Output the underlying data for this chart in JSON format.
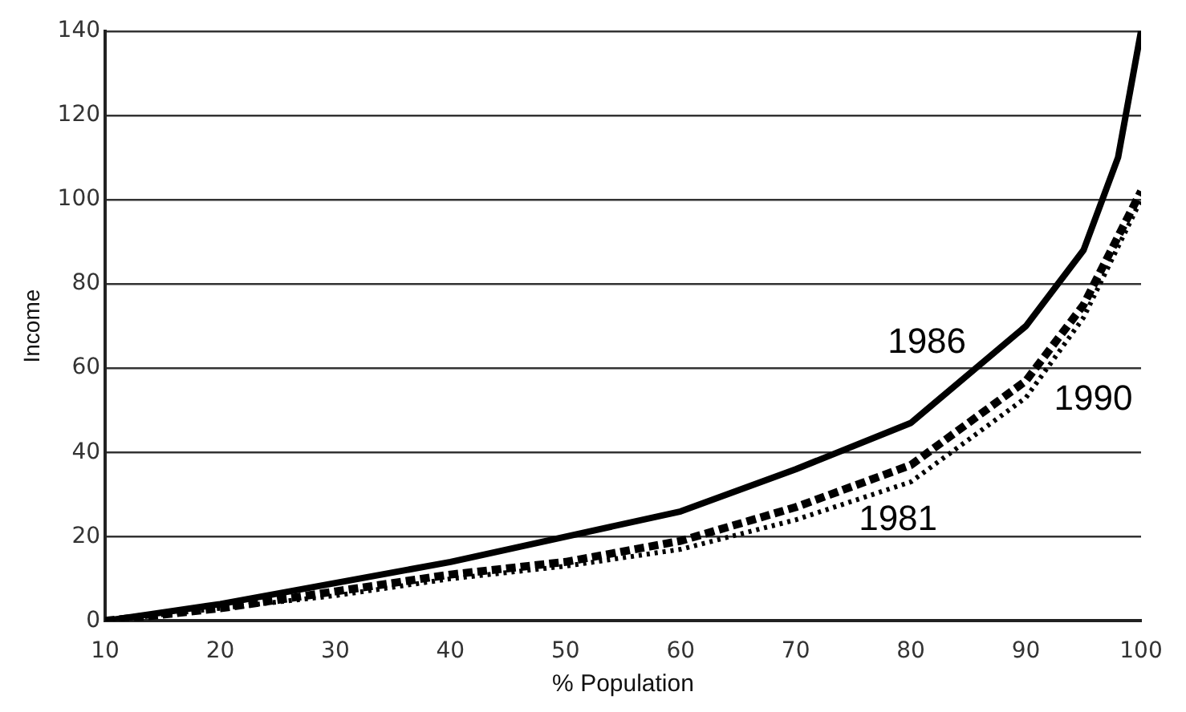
{
  "chart_data": {
    "type": "line",
    "xlabel": "% Population",
    "ylabel": "Income",
    "xlim": [
      10,
      100
    ],
    "xticks": [
      10,
      20,
      30,
      40,
      50,
      60,
      70,
      80,
      90,
      100
    ],
    "ylim": [
      0,
      140
    ],
    "yticks": [
      0,
      20,
      40,
      60,
      80,
      100,
      120,
      140
    ],
    "grid": "y",
    "legend": false,
    "marker": "none",
    "series": [
      {
        "name": "1986",
        "color": "#000000",
        "line_style": "solid",
        "x": [
          10,
          20,
          30,
          40,
          50,
          60,
          70,
          80,
          90,
          95,
          98,
          100
        ],
        "values": [
          0,
          4,
          9,
          14,
          20,
          26,
          36,
          47,
          70,
          88,
          110,
          140
        ]
      },
      {
        "name": "1990",
        "color": "#000000",
        "line_style": "dashed",
        "x": [
          10,
          20,
          30,
          40,
          50,
          60,
          70,
          80,
          90,
          95,
          100
        ],
        "values": [
          0,
          3,
          7,
          11,
          14,
          19,
          27,
          37,
          57,
          75,
          102
        ]
      },
      {
        "name": "1981",
        "color": "#000000",
        "line_style": "dotted",
        "x": [
          10,
          20,
          30,
          40,
          50,
          60,
          70,
          80,
          90,
          95,
          100
        ],
        "values": [
          0,
          3,
          6,
          10,
          13,
          17,
          24,
          33,
          53,
          72,
          100
        ]
      }
    ]
  }
}
